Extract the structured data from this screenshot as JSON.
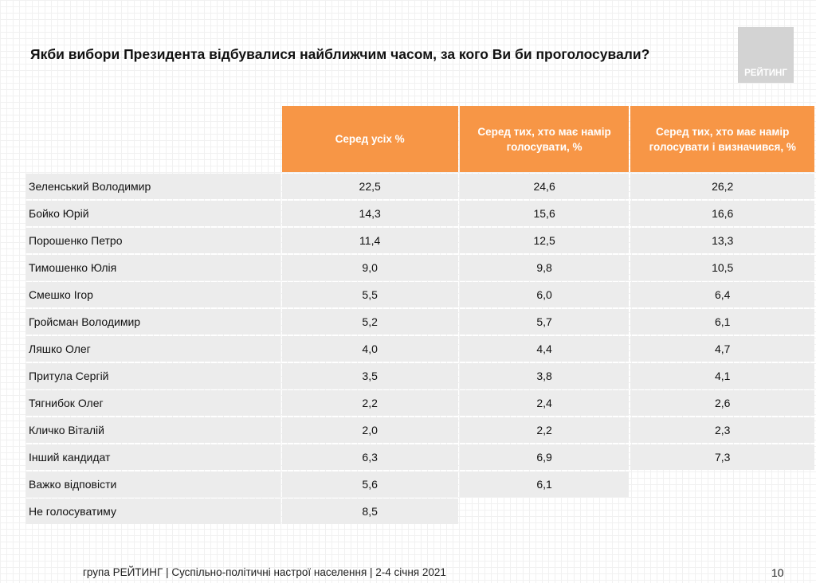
{
  "title": "Якби вибори Президента відбувалися найближчим часом, за кого Ви би проголосували?",
  "logo_text": "РЕЙТИНГ",
  "colors": {
    "header": "#f79646",
    "row": "#ececec",
    "logo": "#d3d3d3"
  },
  "table": {
    "columns": [
      "Серед усіх %",
      "Серед тих, хто має намір голосувати, %",
      "Серед тих, хто має намір голосувати і визначився, %"
    ],
    "rows": [
      {
        "label": "Зеленський Володимир",
        "values": [
          "22,5",
          "24,6",
          "26,2"
        ]
      },
      {
        "label": "Бойко Юрій",
        "values": [
          "14,3",
          "15,6",
          "16,6"
        ]
      },
      {
        "label": "Порошенко Петро",
        "values": [
          "11,4",
          "12,5",
          "13,3"
        ]
      },
      {
        "label": "Тимошенко Юлія",
        "values": [
          "9,0",
          "9,8",
          "10,5"
        ]
      },
      {
        "label": "Смешко Ігор",
        "values": [
          "5,5",
          "6,0",
          "6,4"
        ]
      },
      {
        "label": "Гройсман Володимир",
        "values": [
          "5,2",
          "5,7",
          "6,1"
        ]
      },
      {
        "label": "Ляшко Олег",
        "values": [
          "4,0",
          "4,4",
          "4,7"
        ]
      },
      {
        "label": "Притула Сергій",
        "values": [
          "3,5",
          "3,8",
          "4,1"
        ]
      },
      {
        "label": "Тягнибок Олег",
        "values": [
          "2,2",
          "2,4",
          "2,6"
        ]
      },
      {
        "label": "Кличко Віталій",
        "values": [
          "2,0",
          "2,2",
          "2,3"
        ]
      },
      {
        "label": "Інший кандидат",
        "values": [
          "6,3",
          "6,9",
          "7,3"
        ]
      },
      {
        "label": "Важко відповісти",
        "values": [
          "5,6",
          "6,1",
          null
        ]
      },
      {
        "label": "Не голосуватиму",
        "values": [
          "8,5",
          null,
          null
        ]
      }
    ]
  },
  "footer": "група РЕЙТИНГ | Суспільно-політичні настрої населення  | 2-4 січня 2021",
  "page_number": "10"
}
